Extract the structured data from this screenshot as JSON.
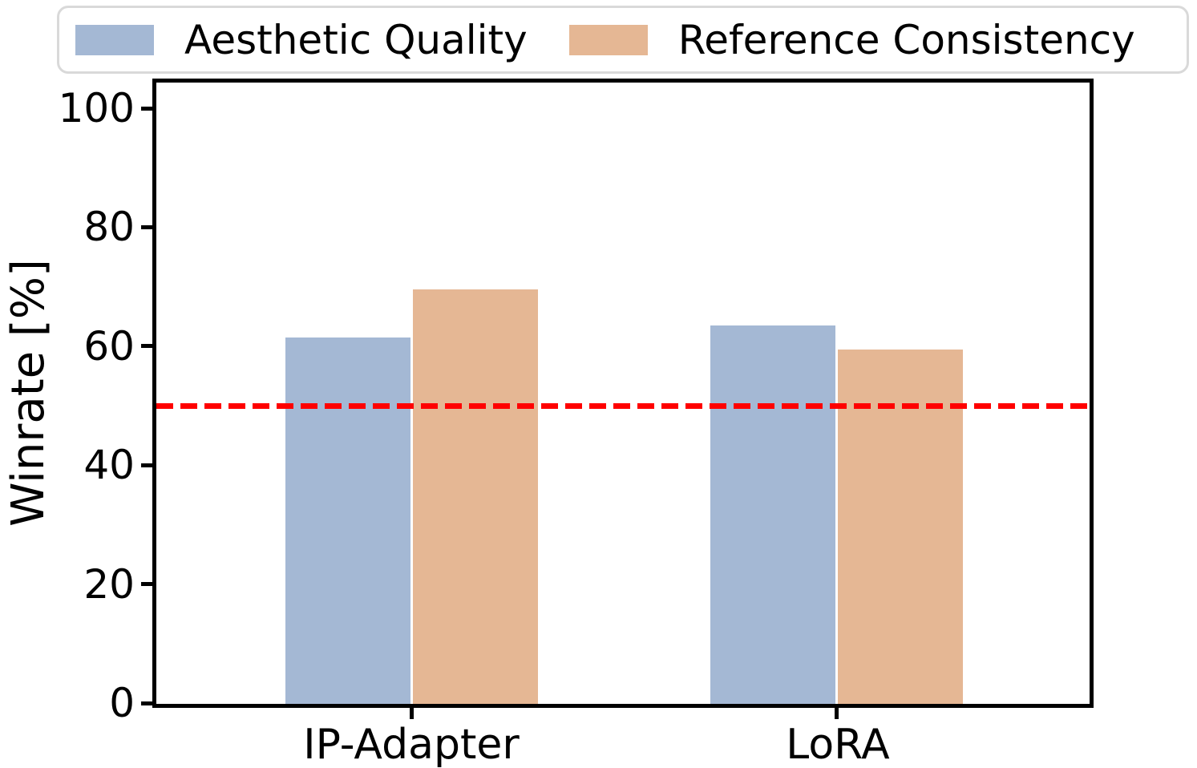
{
  "chart_data": {
    "type": "bar",
    "title": "",
    "categories": [
      "IP-Adapter",
      "LoRA"
    ],
    "series": [
      {
        "name": "Aesthetic Quality",
        "color": "#a4b8d4",
        "values": [
          61.5,
          63.5
        ]
      },
      {
        "name": "Reference Consistency",
        "color": "#e5b794",
        "values": [
          69.6,
          59.5
        ]
      }
    ],
    "xlabel": "",
    "ylabel": "Winrate [%]",
    "ylim": [
      0,
      100
    ],
    "yticks": [
      "0",
      "20",
      "40",
      "60",
      "80",
      "100"
    ],
    "reference_line": {
      "value": 50,
      "color": "#ff0000",
      "style": "dashed"
    },
    "legend_position": "top",
    "grid": false,
    "axis_color": "#000000",
    "legend_border_color": "#d9d9d9"
  }
}
